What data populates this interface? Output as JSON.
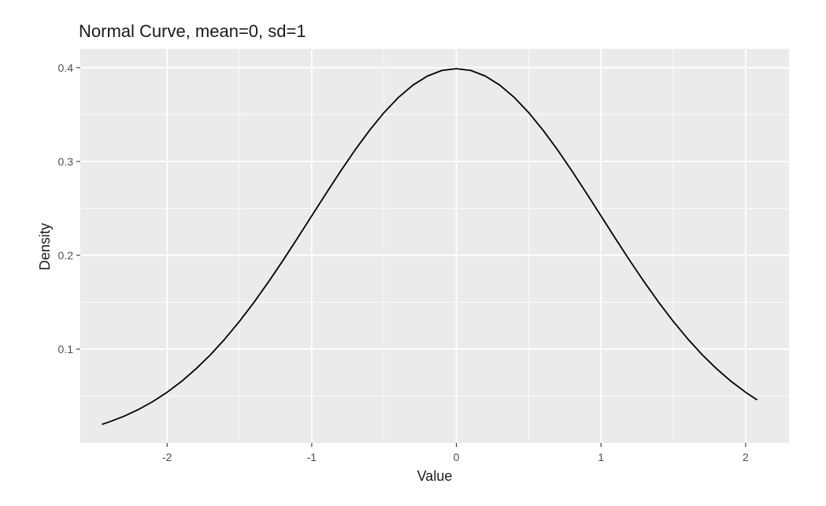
{
  "chart_data": {
    "type": "line",
    "title": "Normal Curve, mean=0, sd=1",
    "xlabel": "Value",
    "ylabel": "Density",
    "xlim": [
      -2.6,
      2.3
    ],
    "ylim": [
      0.0,
      0.42
    ],
    "x_ticks": [
      -2,
      -1,
      0,
      1,
      2
    ],
    "x_tick_labels": [
      "-2",
      "-1",
      "0",
      "1",
      "2"
    ],
    "y_ticks": [
      0.1,
      0.2,
      0.3,
      0.4
    ],
    "y_tick_labels": [
      "0.1",
      "0.2",
      "0.3",
      "0.4"
    ],
    "grid": true,
    "colors": {
      "panel": "#ebebeb",
      "grid": "#ffffff",
      "line": "#000000"
    },
    "series": [
      {
        "x": [
          -2.45,
          -2.4,
          -2.3,
          -2.2,
          -2.1,
          -2.0,
          -1.9,
          -1.8,
          -1.7,
          -1.6,
          -1.5,
          -1.4,
          -1.3,
          -1.2,
          -1.1,
          -1.0,
          -0.9,
          -0.8,
          -0.7,
          -0.6,
          -0.5,
          -0.4,
          -0.3,
          -0.2,
          -0.1,
          0.0,
          0.1,
          0.2,
          0.3,
          0.4,
          0.5,
          0.6,
          0.7,
          0.8,
          0.9,
          1.0,
          1.1,
          1.2,
          1.3,
          1.4,
          1.5,
          1.6,
          1.7,
          1.8,
          1.9,
          2.0,
          2.08
        ],
        "y": [
          0.0198,
          0.0224,
          0.0283,
          0.0355,
          0.044,
          0.054,
          0.0656,
          0.079,
          0.094,
          0.1109,
          0.1295,
          0.1497,
          0.1714,
          0.1942,
          0.2179,
          0.242,
          0.2661,
          0.2897,
          0.3123,
          0.3332,
          0.3521,
          0.3683,
          0.3814,
          0.391,
          0.397,
          0.3989,
          0.397,
          0.391,
          0.3814,
          0.3683,
          0.3521,
          0.3332,
          0.3123,
          0.2897,
          0.2661,
          0.242,
          0.2179,
          0.1942,
          0.1714,
          0.1497,
          0.1295,
          0.1109,
          0.094,
          0.079,
          0.0656,
          0.054,
          0.0459
        ]
      }
    ]
  }
}
